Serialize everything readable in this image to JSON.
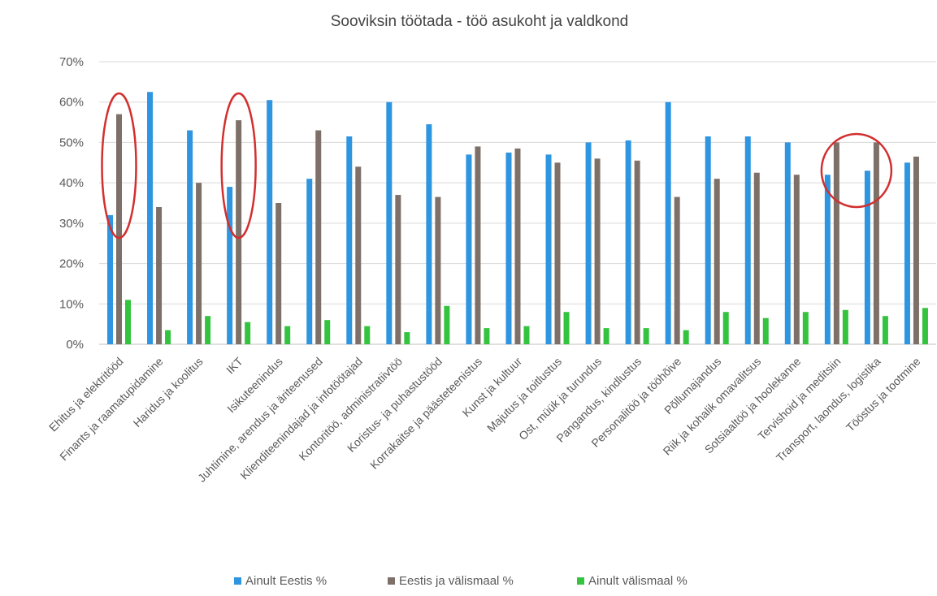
{
  "chart_data": {
    "type": "bar",
    "title": "Sooviksin töötada - töö asukoht ja valdkond",
    "xlabel": "",
    "ylabel": "",
    "ylim": [
      0,
      70
    ],
    "yticks": [
      "0%",
      "10%",
      "20%",
      "30%",
      "40%",
      "50%",
      "60%",
      "70%"
    ],
    "grid": true,
    "legend_position": "bottom",
    "categories": [
      "Ehitus ja elektritööd",
      "Finants ja raamatupidamine",
      "Haridus ja koolitus",
      "IKT",
      "Isikuteenindus",
      "Juhtimine, arendus ja äriteenused",
      "Klienditeenindajad ja infotöötajad",
      "Kontoritöö, administratiivtöö",
      "Koristus- ja puhastustööd",
      "Korrakaitse ja päästeteenistus",
      "Kunst ja kultuur",
      "Majutus ja toitlustus",
      "Ost, müük ja turundus",
      "Pangandus, kindlustus",
      "Personalitöö ja tööhõive",
      "Põllumajandus",
      "Riik ja kohalik omavalitsus",
      "Sotsiaaltöö ja hoolekanne",
      "Tervishoid ja meditsiin",
      "Transport, laondus, logistika",
      "Tööstus ja tootmine"
    ],
    "series": [
      {
        "name": "Ainult Eestis %",
        "color": "#2e95e0",
        "values": [
          32,
          62.5,
          53,
          39,
          60.5,
          41,
          51.5,
          60,
          54.5,
          47,
          47.5,
          47,
          50,
          50.5,
          60,
          51.5,
          51.5,
          50,
          42,
          43,
          45
        ]
      },
      {
        "name": "Eestis ja välismaal %",
        "color": "#7d7068",
        "values": [
          57,
          34,
          40,
          55.5,
          35,
          53,
          44,
          37,
          36.5,
          49,
          48.5,
          45,
          46,
          45.5,
          36.5,
          41,
          42.5,
          42,
          50,
          50,
          46.5
        ]
      },
      {
        "name": "Ainult välismaal %",
        "color": "#34c33e",
        "values": [
          11,
          3.5,
          7,
          5.5,
          4.5,
          6,
          4.5,
          3,
          9.5,
          4,
          4.5,
          8,
          4,
          4,
          3.5,
          8,
          6.5,
          8,
          8.5,
          7,
          9
        ]
      }
    ],
    "annotations": [
      {
        "type": "ellipse",
        "color": "#d32f2f",
        "category_index": 0
      },
      {
        "type": "ellipse",
        "color": "#d32f2f",
        "category_index": 3
      },
      {
        "type": "ellipse",
        "color": "#d32f2f",
        "category_index": 18
      }
    ]
  }
}
